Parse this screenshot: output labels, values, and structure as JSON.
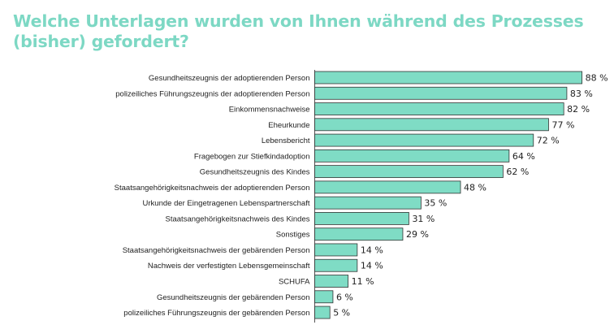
{
  "chart_data": {
    "type": "bar",
    "orientation": "horizontal",
    "title": "Welche Unterlagen wurden von Ihnen während des Prozesses (bisher) gefordert?",
    "categories": [
      "Gesundheitszeugnis der adoptierenden Person",
      "polizeiliches Führungszeugnis der adoptierenden Person",
      "Einkommensnachweise",
      "Eheurkunde",
      "Lebensbericht",
      "Fragebogen zur Stiefkindadoption",
      "Gesundheitszeugnis des Kindes",
      "Staatsangehörigkeitsnachweis der adoptierenden Person",
      "Urkunde der Eingetragenen Lebenspartnerschaft",
      "Staatsangehörigkeitsnachweis des Kindes",
      "Sonstiges",
      "Staatsangehörigkeitsnachweis der gebärenden Person",
      "Nachweis der verfestigten Lebensgemeinschaft",
      "SCHUFA",
      "Gesundheitszeugnis der gebärenden Person",
      "polizeiliches Führungszeugnis der gebärenden Person"
    ],
    "values": [
      88,
      83,
      82,
      77,
      72,
      64,
      62,
      48,
      35,
      31,
      29,
      14,
      14,
      11,
      6,
      5
    ],
    "value_labels": [
      "88 %",
      "83 %",
      "82 %",
      "77 %",
      "72 %",
      "64 %",
      "62 %",
      "48 %",
      "35 %",
      "31 %",
      "29 %",
      "14 %",
      "14 %",
      "11 %",
      "6 %",
      "5 %"
    ],
    "unit": "%",
    "xlim": [
      0,
      100
    ],
    "grid": false,
    "bar_color": "#7fdcc5",
    "title_color": "#7dd8c4"
  }
}
